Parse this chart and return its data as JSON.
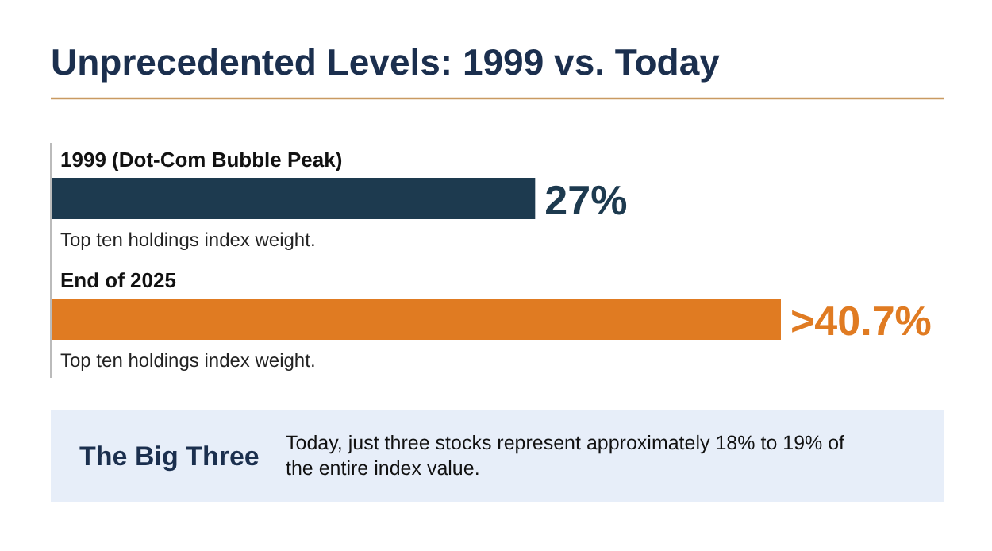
{
  "chart_data": {
    "type": "bar",
    "orientation": "horizontal",
    "title": "Unprecedented Levels: 1999 vs. Today",
    "categories": [
      "1999 (Dot-Com Bubble Peak)",
      "End of 2025"
    ],
    "values": [
      27,
      40.7
    ],
    "colors": [
      "#1d3a4f",
      "#e07b22"
    ],
    "value_labels": [
      "27%",
      ">40.7%"
    ],
    "annotations": [
      "Top ten holdings index weight.",
      "Top ten holdings index weight.",
      "The Big Three",
      "Today, just three stocks represent approximately 18% to 19% of the entire index value."
    ]
  }
}
